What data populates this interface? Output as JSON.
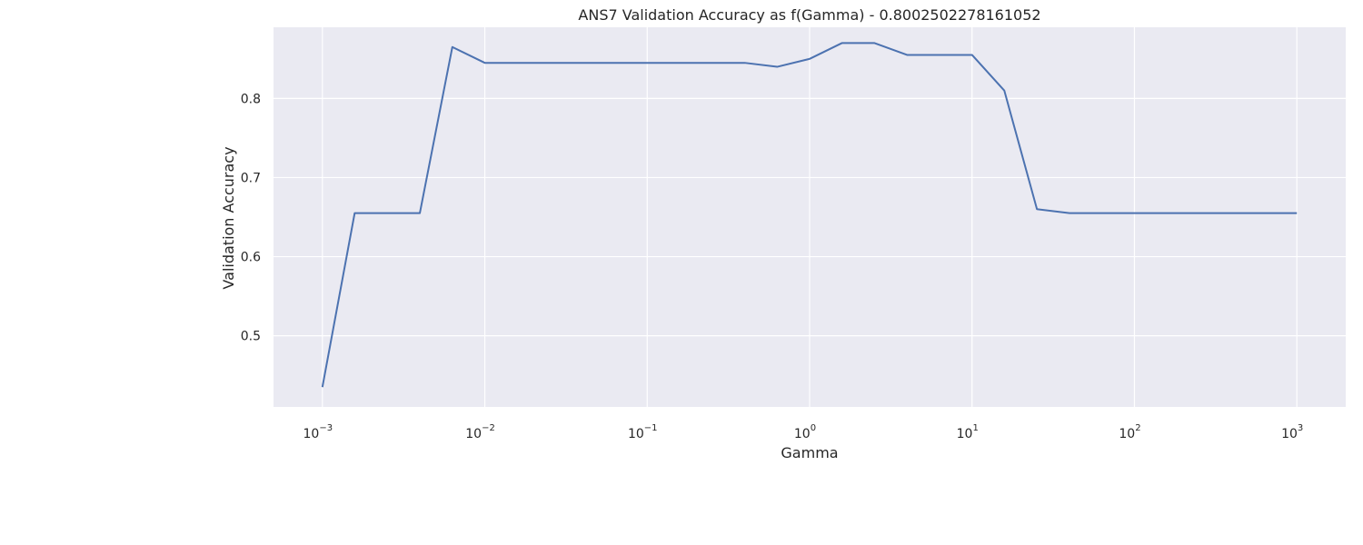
{
  "chart_data": {
    "type": "line",
    "title": "ANS7 Validation Accuracy as f(Gamma) - 0.8002502278161052",
    "xlabel": "Gamma",
    "ylabel": "Validation Accuracy",
    "xscale": "log",
    "xlim": [
      0.0005,
      2000
    ],
    "ylim": [
      0.41,
      0.89
    ],
    "x_ticks": [
      {
        "base": "10",
        "exp": "−3",
        "value": 0.001
      },
      {
        "base": "10",
        "exp": "−2",
        "value": 0.01
      },
      {
        "base": "10",
        "exp": "−1",
        "value": 0.1
      },
      {
        "base": "10",
        "exp": "0",
        "value": 1
      },
      {
        "base": "10",
        "exp": "1",
        "value": 10
      },
      {
        "base": "10",
        "exp": "2",
        "value": 100
      },
      {
        "base": "10",
        "exp": "3",
        "value": 1000
      }
    ],
    "y_ticks": [
      {
        "label": "0.5",
        "value": 0.5
      },
      {
        "label": "0.6",
        "value": 0.6
      },
      {
        "label": "0.7",
        "value": 0.7
      },
      {
        "label": "0.8",
        "value": 0.8
      }
    ],
    "grid": true,
    "series": [
      {
        "color": "#4c72b0",
        "x": [
          0.001,
          0.00158,
          0.00251,
          0.00398,
          0.00631,
          0.01,
          0.0158,
          0.0251,
          0.0398,
          0.0631,
          0.1,
          0.158,
          0.251,
          0.398,
          0.631,
          1,
          1.58,
          2.51,
          3.98,
          6.31,
          10,
          15.8,
          25.1,
          39.8,
          63.1,
          100,
          158,
          251,
          398,
          631,
          1000
        ],
        "y": [
          0.435,
          0.655,
          0.655,
          0.655,
          0.865,
          0.845,
          0.845,
          0.845,
          0.845,
          0.845,
          0.845,
          0.845,
          0.845,
          0.845,
          0.84,
          0.85,
          0.87,
          0.87,
          0.855,
          0.855,
          0.855,
          0.81,
          0.66,
          0.655,
          0.655,
          0.655,
          0.655,
          0.655,
          0.655,
          0.655,
          0.655
        ]
      }
    ]
  }
}
